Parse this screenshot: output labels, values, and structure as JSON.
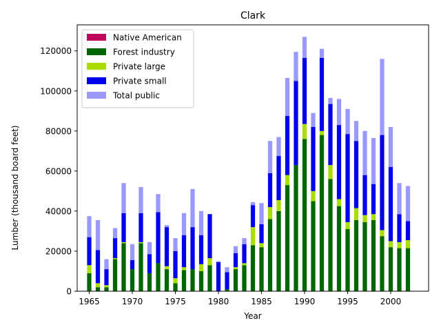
{
  "chart_data": {
    "type": "bar",
    "stacked": true,
    "title": "Clark",
    "xlabel": "Year",
    "ylabel": "Lumber (thousand board feet)",
    "xlim": [
      1963.6,
      2004.4
    ],
    "ylim": [
      0,
      133000
    ],
    "xticks": [
      1965,
      1970,
      1975,
      1980,
      1985,
      1990,
      1995,
      2000
    ],
    "yticks": [
      0,
      20000,
      40000,
      60000,
      80000,
      100000,
      120000
    ],
    "ytick_labels": [
      "0",
      "20000",
      "40000",
      "60000",
      "80000",
      "100000",
      "120000"
    ],
    "legend_position": "upper left",
    "grid": false,
    "x": [
      1965,
      1966,
      1967,
      1968,
      1969,
      1970,
      1971,
      1972,
      1973,
      1974,
      1975,
      1976,
      1977,
      1978,
      1979,
      1980,
      1981,
      1982,
      1983,
      1984,
      1985,
      1986,
      1987,
      1988,
      1989,
      1990,
      1991,
      1992,
      1993,
      1994,
      1995,
      1996,
      1997,
      1998,
      1999,
      2000,
      2001,
      2002
    ],
    "series": [
      {
        "name": "Native American",
        "color": "#c0075f",
        "values": [
          0,
          0,
          0,
          0,
          0,
          0,
          0,
          0,
          0,
          0,
          0,
          0,
          0,
          0,
          0,
          0,
          0,
          0,
          0,
          0,
          0,
          0,
          0,
          0,
          0,
          0,
          0,
          0,
          0,
          0,
          0,
          0,
          0,
          0,
          0,
          0,
          0,
          0
        ]
      },
      {
        "name": "Forest industry",
        "color": "#006600",
        "values": [
          9000,
          2000,
          2000,
          16000,
          24000,
          11000,
          24000,
          9000,
          14000,
          11000,
          4000,
          10500,
          11000,
          10000,
          13000,
          0,
          1000,
          11000,
          13000,
          23000,
          22000,
          36000,
          40000,
          53000,
          63000,
          76000,
          45000,
          78000,
          56000,
          42500,
          31000,
          35500,
          34500,
          35500,
          27500,
          22000,
          21500,
          21500
        ]
      },
      {
        "name": "Private large",
        "color": "#aade00",
        "values": [
          4000,
          2000,
          1000,
          500,
          500,
          0,
          500,
          0,
          0,
          1500,
          2500,
          1500,
          0,
          3500,
          3500,
          0,
          0,
          1000,
          1000,
          9000,
          2000,
          6000,
          5500,
          5000,
          0,
          7500,
          5000,
          2000,
          7000,
          3500,
          3500,
          6000,
          3500,
          3000,
          3000,
          3000,
          3000,
          4000
        ]
      },
      {
        "name": "Private small",
        "color": "#0000ee",
        "values": [
          14000,
          16500,
          8000,
          10000,
          14500,
          4500,
          14500,
          9500,
          25500,
          19500,
          13500,
          16000,
          21000,
          14500,
          22000,
          14500,
          8500,
          7000,
          9500,
          11000,
          9500,
          17000,
          22000,
          29500,
          42000,
          33000,
          32000,
          36500,
          30500,
          37000,
          44000,
          33500,
          20000,
          15000,
          47500,
          37000,
          14000,
          9500
        ]
      },
      {
        "name": "Total public",
        "color": "#9999ff",
        "values": [
          10500,
          15000,
          5000,
          5000,
          15000,
          8000,
          13000,
          6000,
          9000,
          1000,
          6500,
          11000,
          19000,
          12000,
          0,
          500,
          2500,
          3500,
          3000,
          1500,
          10500,
          16000,
          9500,
          19000,
          14500,
          10500,
          7000,
          4500,
          3000,
          13000,
          12500,
          10000,
          22000,
          23000,
          38000,
          20000,
          15500,
          17500
        ]
      }
    ]
  }
}
